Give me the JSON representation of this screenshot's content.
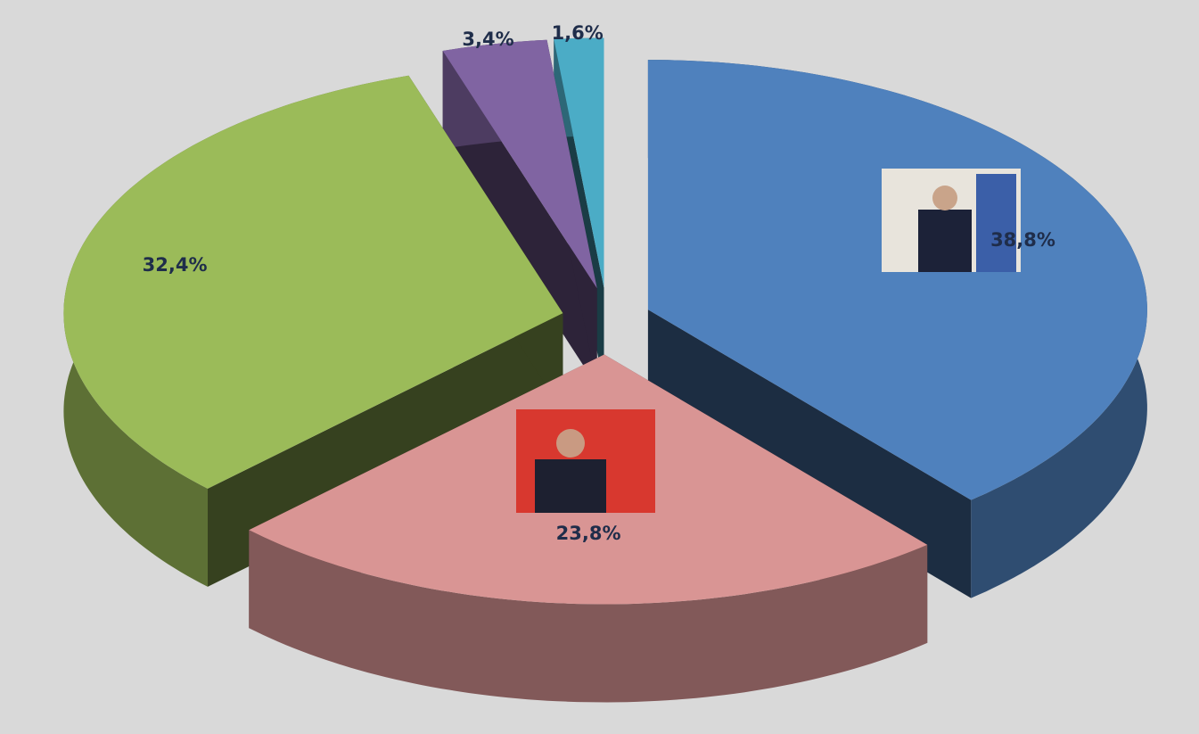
{
  "chart_data": {
    "type": "pie3d",
    "values": [
      38.8,
      23.8,
      32.4,
      3.4,
      1.6
    ],
    "value_labels": [
      "38,8%",
      "23,8%",
      "32,4%",
      "3,4%",
      "1,6%"
    ],
    "colors": [
      "#4f81bd",
      "#d99594",
      "#9bbb59",
      "#8064a2",
      "#4bacc6"
    ]
  }
}
